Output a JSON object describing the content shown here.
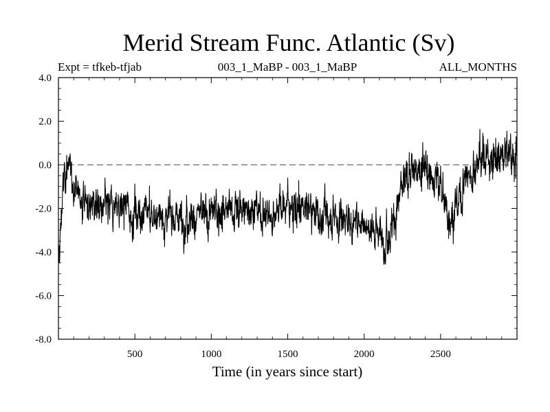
{
  "chart_data": {
    "type": "line",
    "title": "Merid Stream Func. Atlantic (Sv)",
    "subtitle_left": "Expt = tfkeb-tfjab",
    "subtitle_center": "003_1_MaBP - 003_1_MaBP",
    "subtitle_right": "ALL_MONTHS",
    "xlabel": "Time (in years since start)",
    "ylabel": "",
    "xlim": [
      0,
      3000
    ],
    "ylim": [
      -8.0,
      4.0
    ],
    "xticks": [
      500,
      1000,
      1500,
      2000,
      2500
    ],
    "xtick_labels": [
      "500",
      "1000",
      "1500",
      "2000",
      "2500"
    ],
    "yticks": [
      -8,
      -6,
      -4,
      -2,
      0,
      2,
      4
    ],
    "ytick_labels": [
      "-8.0",
      "-6.0",
      "-4.0",
      "-2.0",
      "0.0",
      "2.0",
      "4.0"
    ],
    "reference_line": {
      "y": 0.0,
      "style": "dashed"
    },
    "grid": false,
    "line_color": "#000000",
    "series": [
      {
        "x": [
          0,
          10,
          20,
          40,
          60,
          80,
          100,
          150,
          200,
          300,
          400,
          500,
          600,
          700,
          800,
          900,
          1000,
          1100,
          1200,
          1300,
          1400,
          1500,
          1600,
          1700,
          1800,
          1900,
          2000,
          2050,
          2100,
          2150,
          2200,
          2250,
          2300,
          2350,
          2400,
          2450,
          2500,
          2550,
          2600,
          2650,
          2700,
          2750,
          2800,
          2850,
          2900,
          2950,
          3000
        ],
        "values": [
          -5.0,
          -3.5,
          -2.0,
          -0.5,
          0.0,
          -0.6,
          -1.0,
          -1.5,
          -1.8,
          -2.0,
          -2.0,
          -2.2,
          -2.3,
          -2.5,
          -2.4,
          -2.3,
          -2.2,
          -2.1,
          -2.0,
          -2.1,
          -2.2,
          -1.8,
          -2.0,
          -2.2,
          -2.4,
          -2.5,
          -2.7,
          -2.9,
          -3.0,
          -3.2,
          -2.4,
          -1.0,
          -0.3,
          0.0,
          -0.3,
          -0.6,
          -0.8,
          -2.5,
          -2.2,
          -1.0,
          -0.2,
          0.3,
          0.5,
          0.3,
          0.4,
          0.5,
          0.3
        ]
      }
    ]
  }
}
